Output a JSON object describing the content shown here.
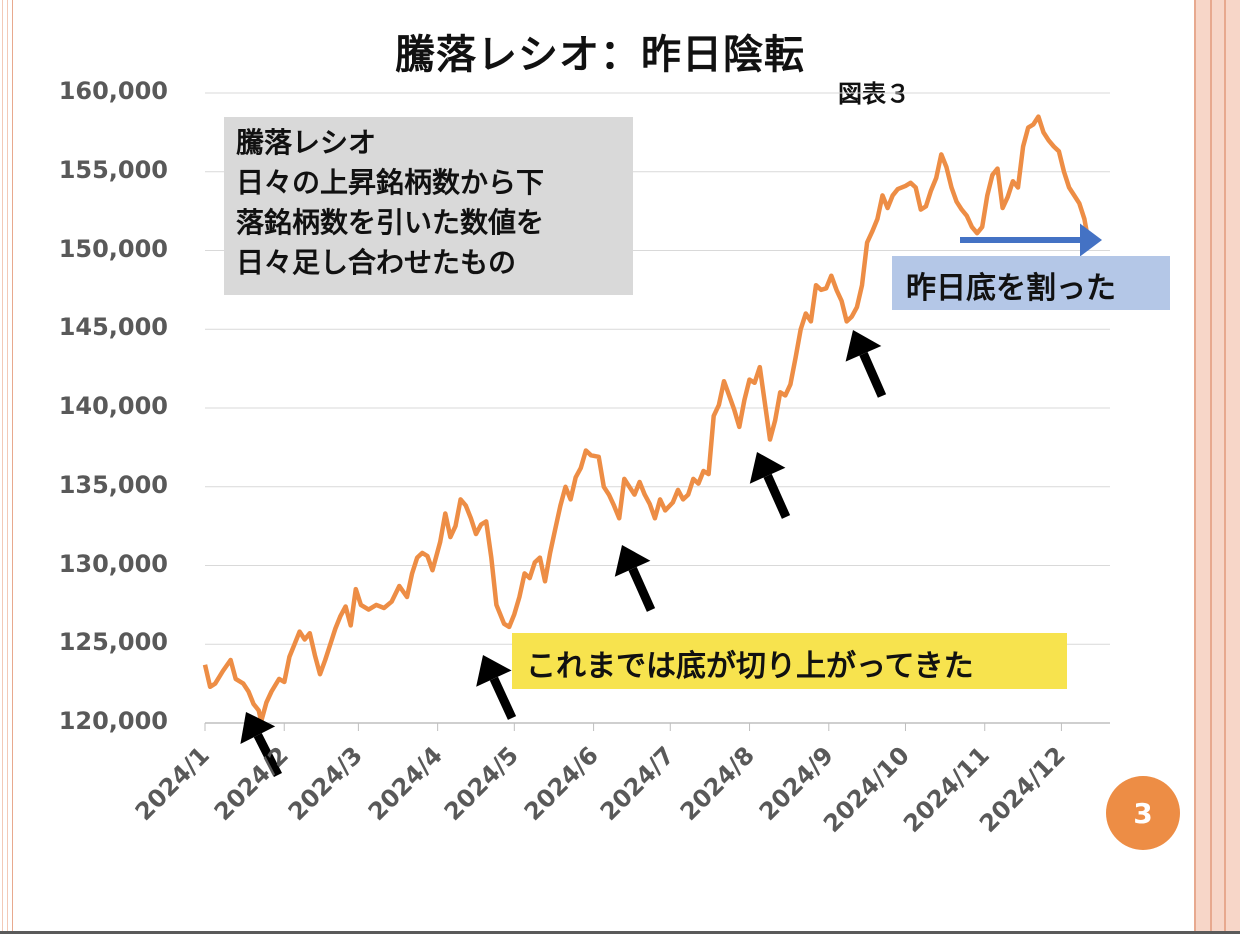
{
  "slide": {
    "title": "騰落レシオ：昨日陰転",
    "figure_label": "図表３",
    "page_number": "3"
  },
  "annotations": {
    "definition": [
      "騰落レシオ",
      "日々の上昇銘柄数から下",
      "落銘柄数を引いた数値を",
      "日々足し合わせたもの"
    ],
    "rising_bottoms": "これまでは底が切り上がってきた",
    "broke_yesterday_low": "昨日底を割った"
  },
  "colors": {
    "line": "#ed8d45",
    "grid": "#d9d9d9",
    "axis_text": "#595959",
    "arrow": "#000000",
    "blue_arrow": "#4472c4"
  },
  "chart_data": {
    "type": "line",
    "ylim": [
      120000,
      160000
    ],
    "yticks": [
      "160,000",
      "155,000",
      "150,000",
      "145,000",
      "140,000",
      "135,000",
      "130,000",
      "125,000",
      "120,000"
    ],
    "xticks": [
      "2024/1",
      "2024/2",
      "2024/3",
      "2024/4",
      "2024/5",
      "2024/6",
      "2024/7",
      "2024/8",
      "2024/9",
      "2024/10",
      "2024/11",
      "2024/12"
    ],
    "xlim": [
      "2024-01-01",
      "2024-12-20"
    ],
    "series": [
      {
        "points": [
          [
            "2024-01-01",
            123700
          ],
          [
            "2024-01-03",
            122300
          ],
          [
            "2024-01-05",
            122500
          ],
          [
            "2024-01-08",
            123300
          ],
          [
            "2024-01-11",
            124000
          ],
          [
            "2024-01-13",
            122800
          ],
          [
            "2024-01-16",
            122500
          ],
          [
            "2024-01-18",
            122000
          ],
          [
            "2024-01-20",
            121200
          ],
          [
            "2024-01-22",
            120800
          ],
          [
            "2024-01-23",
            120100
          ],
          [
            "2024-01-25",
            121300
          ],
          [
            "2024-01-27",
            122000
          ],
          [
            "2024-01-30",
            122800
          ],
          [
            "2024-02-01",
            122600
          ],
          [
            "2024-02-03",
            124200
          ],
          [
            "2024-02-05",
            125000
          ],
          [
            "2024-02-07",
            125800
          ],
          [
            "2024-02-09",
            125300
          ],
          [
            "2024-02-11",
            125700
          ],
          [
            "2024-02-13",
            124300
          ],
          [
            "2024-02-15",
            123100
          ],
          [
            "2024-02-17",
            124000
          ],
          [
            "2024-02-19",
            125000
          ],
          [
            "2024-02-21",
            126000
          ],
          [
            "2024-02-23",
            126800
          ],
          [
            "2024-02-25",
            127400
          ],
          [
            "2024-02-27",
            126200
          ],
          [
            "2024-02-29",
            128500
          ],
          [
            "2024-03-02",
            127500
          ],
          [
            "2024-03-05",
            127200
          ],
          [
            "2024-03-08",
            127500
          ],
          [
            "2024-03-11",
            127300
          ],
          [
            "2024-03-14",
            127700
          ],
          [
            "2024-03-17",
            128700
          ],
          [
            "2024-03-20",
            128000
          ],
          [
            "2024-03-22",
            129500
          ],
          [
            "2024-03-24",
            130500
          ],
          [
            "2024-03-26",
            130800
          ],
          [
            "2024-03-28",
            130600
          ],
          [
            "2024-03-30",
            129700
          ],
          [
            "2024-04-02",
            131500
          ],
          [
            "2024-04-04",
            133300
          ],
          [
            "2024-04-06",
            131800
          ],
          [
            "2024-04-08",
            132500
          ],
          [
            "2024-04-10",
            134200
          ],
          [
            "2024-04-12",
            133800
          ],
          [
            "2024-04-14",
            133000
          ],
          [
            "2024-04-16",
            132000
          ],
          [
            "2024-04-18",
            132600
          ],
          [
            "2024-04-20",
            132800
          ],
          [
            "2024-04-22",
            130500
          ],
          [
            "2024-04-24",
            127500
          ],
          [
            "2024-04-27",
            126300
          ],
          [
            "2024-04-29",
            126100
          ],
          [
            "2024-05-01",
            126900
          ],
          [
            "2024-05-03",
            128000
          ],
          [
            "2024-05-05",
            129500
          ],
          [
            "2024-05-07",
            129200
          ],
          [
            "2024-05-09",
            130200
          ],
          [
            "2024-05-11",
            130500
          ],
          [
            "2024-05-13",
            129000
          ],
          [
            "2024-05-15",
            130800
          ],
          [
            "2024-05-17",
            132300
          ],
          [
            "2024-05-19",
            133800
          ],
          [
            "2024-05-21",
            135000
          ],
          [
            "2024-05-23",
            134200
          ],
          [
            "2024-05-25",
            135600
          ],
          [
            "2024-05-27",
            136200
          ],
          [
            "2024-05-29",
            137300
          ],
          [
            "2024-05-31",
            137000
          ],
          [
            "2024-06-03",
            136900
          ],
          [
            "2024-06-05",
            135000
          ],
          [
            "2024-06-07",
            134500
          ],
          [
            "2024-06-09",
            133800
          ],
          [
            "2024-06-11",
            133000
          ],
          [
            "2024-06-13",
            135500
          ],
          [
            "2024-06-15",
            135000
          ],
          [
            "2024-06-17",
            134500
          ],
          [
            "2024-06-19",
            135300
          ],
          [
            "2024-06-21",
            134500
          ],
          [
            "2024-06-23",
            133900
          ],
          [
            "2024-06-25",
            133000
          ],
          [
            "2024-06-27",
            134200
          ],
          [
            "2024-06-29",
            133500
          ],
          [
            "2024-07-02",
            134000
          ],
          [
            "2024-07-04",
            134800
          ],
          [
            "2024-07-06",
            134200
          ],
          [
            "2024-07-08",
            134500
          ],
          [
            "2024-07-10",
            135500
          ],
          [
            "2024-07-12",
            135200
          ],
          [
            "2024-07-14",
            136000
          ],
          [
            "2024-07-16",
            135800
          ],
          [
            "2024-07-18",
            139500
          ],
          [
            "2024-07-20",
            140200
          ],
          [
            "2024-07-22",
            141700
          ],
          [
            "2024-07-24",
            140800
          ],
          [
            "2024-07-26",
            139900
          ],
          [
            "2024-07-28",
            138800
          ],
          [
            "2024-07-30",
            140500
          ],
          [
            "2024-08-01",
            141800
          ],
          [
            "2024-08-03",
            141600
          ],
          [
            "2024-08-05",
            142600
          ],
          [
            "2024-08-07",
            140300
          ],
          [
            "2024-08-09",
            138000
          ],
          [
            "2024-08-11",
            139200
          ],
          [
            "2024-08-13",
            141000
          ],
          [
            "2024-08-15",
            140800
          ],
          [
            "2024-08-17",
            141500
          ],
          [
            "2024-08-19",
            143200
          ],
          [
            "2024-08-21",
            145000
          ],
          [
            "2024-08-23",
            146000
          ],
          [
            "2024-08-25",
            145500
          ],
          [
            "2024-08-27",
            147800
          ],
          [
            "2024-08-29",
            147500
          ],
          [
            "2024-08-31",
            147600
          ],
          [
            "2024-09-02",
            148400
          ],
          [
            "2024-09-04",
            147500
          ],
          [
            "2024-09-06",
            146800
          ],
          [
            "2024-09-08",
            145500
          ],
          [
            "2024-09-10",
            145800
          ],
          [
            "2024-09-12",
            146400
          ],
          [
            "2024-09-14",
            147800
          ],
          [
            "2024-09-16",
            150500
          ],
          [
            "2024-09-18",
            151200
          ],
          [
            "2024-09-20",
            152000
          ],
          [
            "2024-09-22",
            153500
          ],
          [
            "2024-09-24",
            152700
          ],
          [
            "2024-09-26",
            153500
          ],
          [
            "2024-09-28",
            153900
          ],
          [
            "2024-10-01",
            154100
          ],
          [
            "2024-10-03",
            154300
          ],
          [
            "2024-10-05",
            154000
          ],
          [
            "2024-10-07",
            152600
          ],
          [
            "2024-10-09",
            152800
          ],
          [
            "2024-10-11",
            153800
          ],
          [
            "2024-10-13",
            154600
          ],
          [
            "2024-10-15",
            156100
          ],
          [
            "2024-10-17",
            155300
          ],
          [
            "2024-10-19",
            154000
          ],
          [
            "2024-10-21",
            153100
          ],
          [
            "2024-10-23",
            152600
          ],
          [
            "2024-10-25",
            152200
          ],
          [
            "2024-10-27",
            151500
          ],
          [
            "2024-10-29",
            151100
          ],
          [
            "2024-10-31",
            151500
          ],
          [
            "2024-11-02",
            153500
          ],
          [
            "2024-11-04",
            154800
          ],
          [
            "2024-11-06",
            155200
          ],
          [
            "2024-11-08",
            152700
          ],
          [
            "2024-11-10",
            153400
          ],
          [
            "2024-11-12",
            154400
          ],
          [
            "2024-11-14",
            154000
          ],
          [
            "2024-11-16",
            156600
          ],
          [
            "2024-11-18",
            157800
          ],
          [
            "2024-11-20",
            158000
          ],
          [
            "2024-11-22",
            158500
          ],
          [
            "2024-11-24",
            157500
          ],
          [
            "2024-11-26",
            157000
          ],
          [
            "2024-11-28",
            156600
          ],
          [
            "2024-11-30",
            156300
          ],
          [
            "2024-12-02",
            155000
          ],
          [
            "2024-12-04",
            154000
          ],
          [
            "2024-12-06",
            153500
          ],
          [
            "2024-12-08",
            153000
          ],
          [
            "2024-12-10",
            152000
          ],
          [
            "2024-12-12",
            150200
          ]
        ]
      }
    ],
    "grid": true
  }
}
